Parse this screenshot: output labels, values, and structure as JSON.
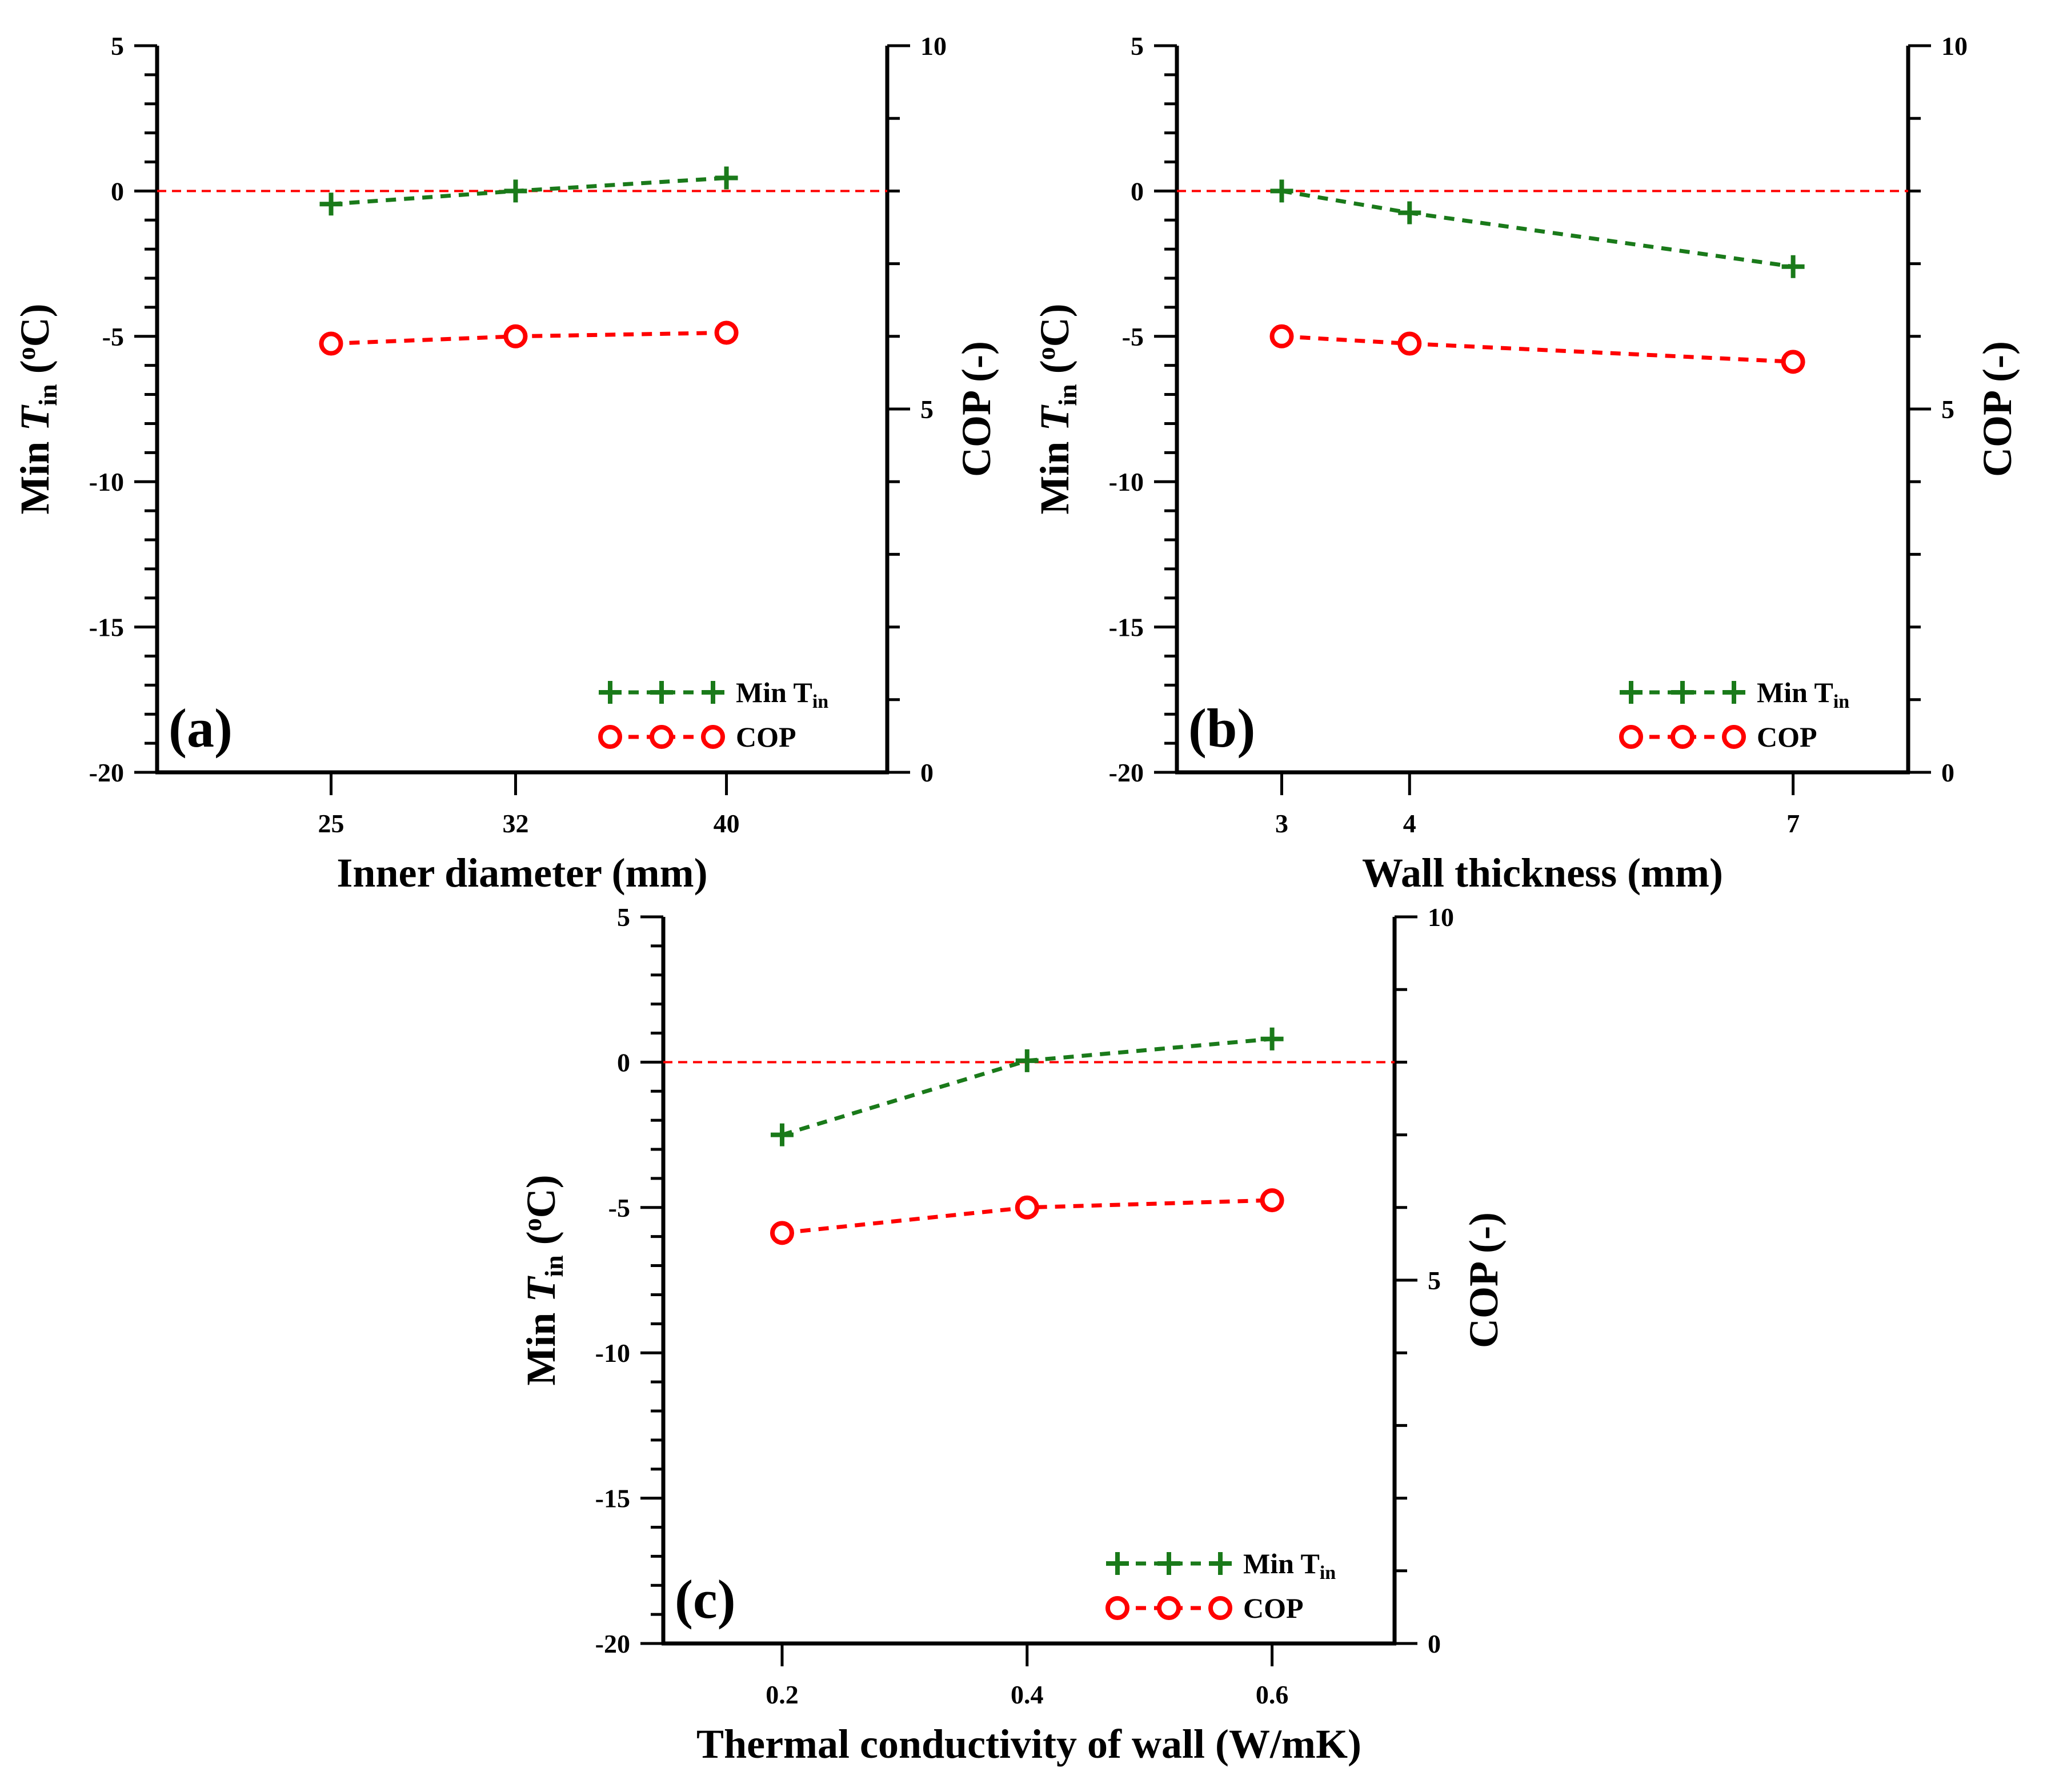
{
  "chart_data": [
    {
      "type": "line",
      "panel_label": "(a)",
      "xlabel": "Inner diameter (mm)",
      "ylabel_left_prefix": "Min ",
      "ylabel_left_var": "T",
      "ylabel_left_sub": "in",
      "ylabel_left_open": " (",
      "ylabel_left_sup": "o",
      "ylabel_left_close": "C)",
      "ylabel_right": "COP (-)",
      "xlim": [
        18.4,
        46.1
      ],
      "x_ticks": [
        25,
        32,
        40
      ],
      "x_tick_labels": [
        "25",
        "32",
        "40"
      ],
      "ylim_left": [
        -20,
        5
      ],
      "y_ticks_left": [
        -20,
        -15,
        -10,
        -5,
        0,
        5
      ],
      "y_tick_labels_left": [
        "-20",
        "-15",
        "-10",
        "-5",
        "0",
        "5"
      ],
      "ylim_right": [
        0,
        10
      ],
      "y_ticks_right": [
        0,
        5,
        10
      ],
      "y_tick_labels_right": [
        "0",
        "5",
        "10"
      ],
      "reference_line_y": 0,
      "series": [
        {
          "name": "Min T",
          "name_sub": "in",
          "axis": "left",
          "marker": "plus",
          "color": "#1a7a1a",
          "x": [
            25,
            32,
            40
          ],
          "values": [
            -0.45,
            0.0,
            0.45
          ]
        },
        {
          "name": "COP",
          "axis": "right",
          "marker": "circle",
          "color": "#ff0000",
          "x": [
            25,
            32,
            40
          ],
          "values": [
            5.9,
            6.0,
            6.05
          ]
        }
      ],
      "legend_position": "bottom-right"
    },
    {
      "type": "line",
      "panel_label": "(b)",
      "xlabel": "Wall thickness (mm)",
      "ylabel_left_prefix": "Min ",
      "ylabel_left_var": "T",
      "ylabel_left_sub": "in",
      "ylabel_left_open": " (",
      "ylabel_left_sup": "o",
      "ylabel_left_close": "C)",
      "ylabel_right": "COP (-)",
      "xlim": [
        2.18,
        7.9
      ],
      "x_ticks": [
        3,
        4,
        7
      ],
      "x_tick_labels": [
        "3",
        "4",
        "7"
      ],
      "ylim_left": [
        -20,
        5
      ],
      "y_ticks_left": [
        -20,
        -15,
        -10,
        -5,
        0,
        5
      ],
      "y_tick_labels_left": [
        "-20",
        "-15",
        "-10",
        "-5",
        "0",
        "5"
      ],
      "ylim_right": [
        0,
        10
      ],
      "y_ticks_right": [
        0,
        5,
        10
      ],
      "y_tick_labels_right": [
        "0",
        "5",
        "10"
      ],
      "reference_line_y": 0,
      "series": [
        {
          "name": "Min T",
          "name_sub": "in",
          "axis": "left",
          "marker": "plus",
          "color": "#1a7a1a",
          "x": [
            3,
            4,
            7
          ],
          "values": [
            0.0,
            -0.75,
            -2.6
          ]
        },
        {
          "name": "COP",
          "axis": "right",
          "marker": "circle",
          "color": "#ff0000",
          "x": [
            3,
            4,
            7
          ],
          "values": [
            6.0,
            5.9,
            5.65
          ]
        }
      ],
      "legend_position": "bottom-right"
    },
    {
      "type": "line",
      "panel_label": "(c)",
      "xlabel": "Thermal conductivity of wall (W/mK)",
      "ylabel_left_prefix": "Min ",
      "ylabel_left_var": "T",
      "ylabel_left_sub": "in",
      "ylabel_left_open": " (",
      "ylabel_left_sup": "o",
      "ylabel_left_close": "C)",
      "ylabel_right": "COP (-)",
      "xlim": [
        0.103,
        0.7
      ],
      "x_ticks": [
        0.2,
        0.4,
        0.6
      ],
      "x_tick_labels": [
        "0.2",
        "0.4",
        "0.6"
      ],
      "ylim_left": [
        -20,
        5
      ],
      "y_ticks_left": [
        -20,
        -15,
        -10,
        -5,
        0,
        5
      ],
      "y_tick_labels_left": [
        "-20",
        "-15",
        "-10",
        "-5",
        "0",
        "5"
      ],
      "ylim_right": [
        0,
        10
      ],
      "y_ticks_right": [
        0,
        5,
        10
      ],
      "y_tick_labels_right": [
        "0",
        "5",
        "10"
      ],
      "reference_line_y": 0,
      "series": [
        {
          "name": "Min T",
          "name_sub": "in",
          "axis": "left",
          "marker": "plus",
          "color": "#1a7a1a",
          "x": [
            0.2,
            0.4,
            0.6
          ],
          "values": [
            -2.5,
            0.05,
            0.8
          ]
        },
        {
          "name": "COP",
          "axis": "right",
          "marker": "circle",
          "color": "#ff0000",
          "x": [
            0.2,
            0.4,
            0.6
          ],
          "values": [
            5.65,
            6.0,
            6.1
          ]
        }
      ],
      "legend_position": "bottom-right"
    }
  ]
}
